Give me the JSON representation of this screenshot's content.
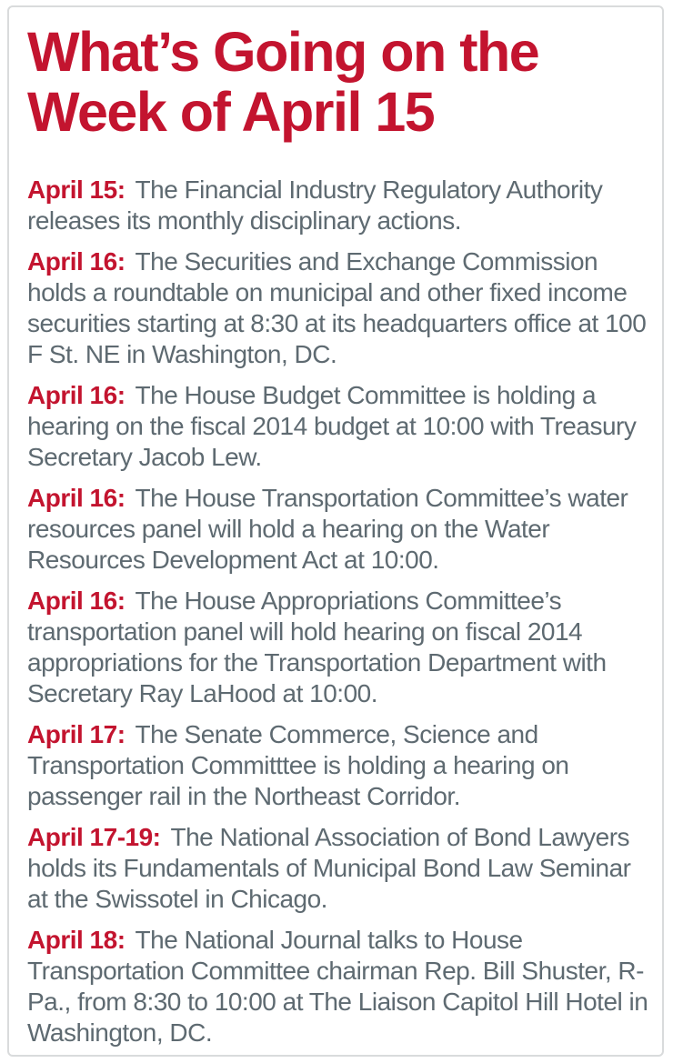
{
  "title": {
    "text": "What’s Going on the Week of April 15"
  },
  "colors": {
    "accent_red": "#c3142f",
    "body_gray": "#5e6a71",
    "border_gray": "#d9dbdc",
    "background": "#ffffff"
  },
  "events": [
    {
      "date": "April 15:",
      "text": "The Financial Industry Regulatory Authority releases its monthly disciplinary actions."
    },
    {
      "date": "April 16:",
      "text": "The Securities and Exchange Commission holds a roundtable on municipal and other fixed income securities starting at 8:30 at its headquarters office at 100 F St. NE in Washington, DC."
    },
    {
      "date": "April 16:",
      "text": "The House Budget Committee is holding a hearing on the fiscal 2014 budget at 10:00 with Treasury Secretary Jacob Lew."
    },
    {
      "date": "April 16:",
      "text": "The House Transportation Committee’s water resources panel will hold a hearing on the Water Resources Development Act at 10:00."
    },
    {
      "date": "April 16:",
      "text": "The House Appropriations Committee’s transportation panel will hold hearing on fiscal 2014 appropriations for the Transportation Department with Secretary Ray LaHood at 10:00."
    },
    {
      "date": "April 17:",
      "text": "The Senate Commerce, Science and Transportation Committtee is holding a hearing on passenger rail in the Northeast Corridor."
    },
    {
      "date": "April 17-19:",
      "text": "The National Association of Bond Lawyers holds its Fundamentals of Municipal Bond Law Seminar at the Swissotel in Chicago."
    },
    {
      "date": "April 18:",
      "text": "The National Journal talks to House Transportation Committee chairman Rep. Bill Shuster, R-Pa., from 8:30 to 10:00 at The Liaison Capitol Hill Hotel in Washington, DC."
    }
  ]
}
